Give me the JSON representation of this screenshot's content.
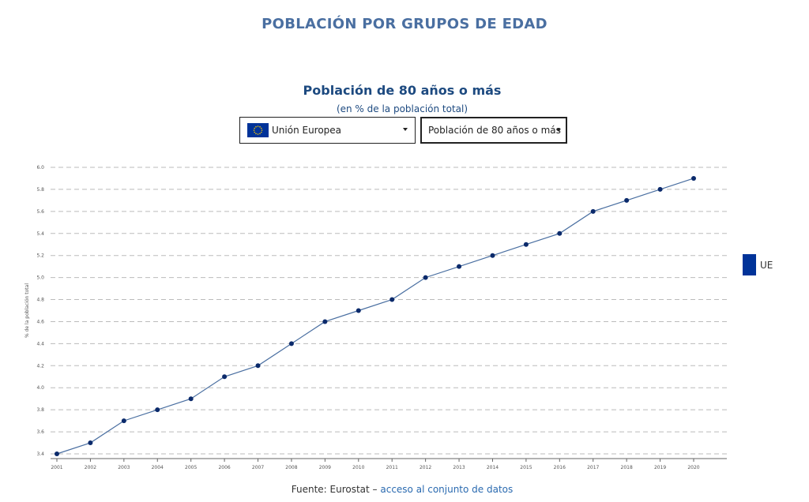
{
  "header": {
    "title": "POBLACIÓN POR GRUPOS DE EDAD"
  },
  "chart_header": {
    "title": "Población de 80 años o más",
    "subtitle": "(en % de la población total)"
  },
  "selectors": {
    "country": {
      "value": "Unión Europea",
      "icon": "eu-flag-icon"
    },
    "indicator": {
      "value": "Población de 80 años o más"
    }
  },
  "legend": {
    "label": "UE",
    "color": "#003399"
  },
  "source": {
    "prefix": "Fuente: Eurostat – ",
    "link": "acceso al conjunto de datos"
  },
  "colors": {
    "line": "#4a6fa1",
    "marker": "#0b2a6b",
    "title": "#1d4a80",
    "grid": "#bbbbbb"
  },
  "chart_data": {
    "type": "line",
    "title": "Población de 80 años o más",
    "subtitle": "(en % de la población total)",
    "ylabel": "% de la población total",
    "xlabel": "",
    "ylim": [
      3.4,
      6.0
    ],
    "yticks": [
      "3.4",
      "3.6",
      "3.8",
      "4.0",
      "4.2",
      "4.4",
      "4.6",
      "4.8",
      "5.0",
      "5.2",
      "5.4",
      "5.6",
      "5.8",
      "6.0"
    ],
    "grid": true,
    "legend_position": "right",
    "x": [
      "2001",
      "2002",
      "2003",
      "2004",
      "2005",
      "2006",
      "2007",
      "2008",
      "2009",
      "2010",
      "2011",
      "2012",
      "2013",
      "2014",
      "2015",
      "2016",
      "2017",
      "2018",
      "2019",
      "2020"
    ],
    "series": [
      {
        "name": "UE",
        "values": [
          3.4,
          3.5,
          3.7,
          3.8,
          3.9,
          4.1,
          4.2,
          4.4,
          4.6,
          4.7,
          4.8,
          5.0,
          5.1,
          5.2,
          5.3,
          5.4,
          5.6,
          5.7,
          5.8,
          5.9
        ]
      }
    ]
  }
}
